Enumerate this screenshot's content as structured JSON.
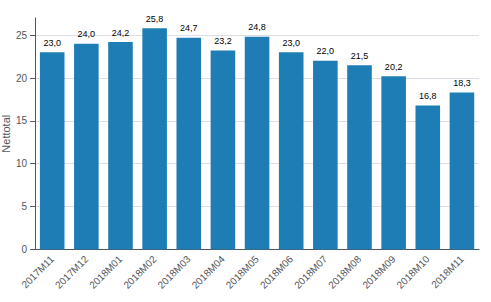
{
  "chart_data": {
    "type": "bar",
    "ylabel": "Nettotal",
    "categories": [
      "2017M11",
      "2017M12",
      "2018M01",
      "2018M02",
      "2018M03",
      "2018M04",
      "2018M05",
      "2018M06",
      "2018M07",
      "2018M08",
      "2018M09",
      "2018M10",
      "2018M11"
    ],
    "values": [
      23.0,
      24.0,
      24.2,
      25.8,
      24.7,
      23.2,
      24.8,
      23.0,
      22.0,
      21.5,
      20.2,
      16.8,
      18.3
    ],
    "value_labels": [
      "23,0",
      "24,0",
      "24,2",
      "25,8",
      "24,7",
      "23,2",
      "24,8",
      "23,0",
      "22,0",
      "21,5",
      "20,2",
      "16,8",
      "18,3"
    ],
    "color": "#1f7db5",
    "ylim": [
      0,
      27
    ],
    "yticks": [
      0,
      5,
      10,
      15,
      20,
      25
    ],
    "grid": true,
    "data_labels": true
  }
}
